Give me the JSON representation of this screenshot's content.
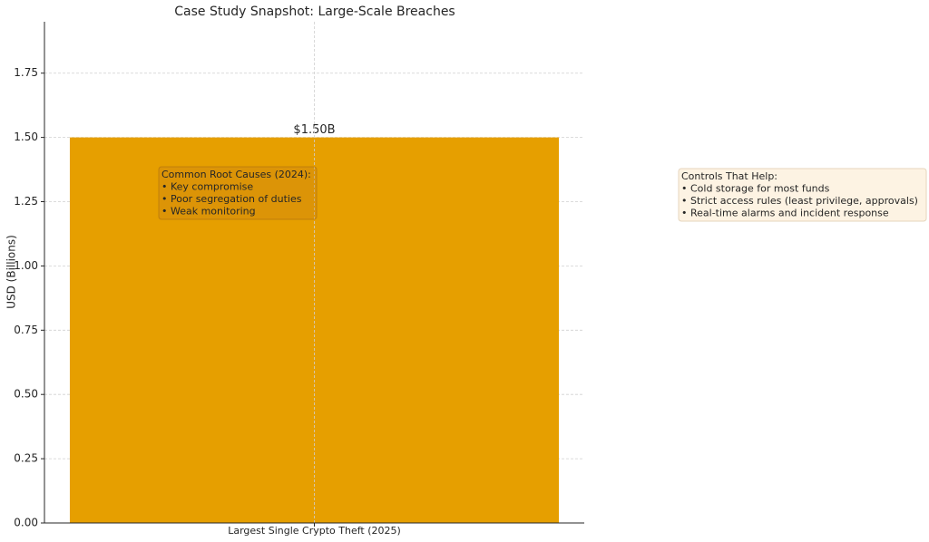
{
  "chart_data": {
    "type": "bar",
    "title": "Case Study Snapshot: Large-Scale Breaches",
    "ylabel": "USD (Billions)",
    "categories": [
      "Largest Single Crypto Theft (2025)"
    ],
    "values": [
      1.5
    ],
    "value_labels": [
      "$1.50B"
    ],
    "color": "#e69f00",
    "ylim": [
      0,
      1.95
    ],
    "yticks": [
      {
        "value": 0,
        "label": "0.00"
      },
      {
        "value": 0.25,
        "label": "0.25"
      },
      {
        "value": 0.5,
        "label": "0.50"
      },
      {
        "value": 0.75,
        "label": "0.75"
      },
      {
        "value": 1,
        "label": "1.00"
      },
      {
        "value": 1.25,
        "label": "1.25"
      },
      {
        "value": 1.5,
        "label": "1.50"
      },
      {
        "value": 1.75,
        "label": "1.75"
      }
    ],
    "grid": true,
    "annotations": [
      {
        "lines": [
          "Common Root Causes (2024):",
          "• Key compromise",
          "• Poor segregation of duties",
          "• Weak monitoring"
        ]
      },
      {
        "lines": [
          "Controls That Help:",
          "• Cold storage for most funds",
          "• Strict access rules (least privilege, approvals)",
          "• Real-time alarms and incident response"
        ]
      }
    ]
  }
}
